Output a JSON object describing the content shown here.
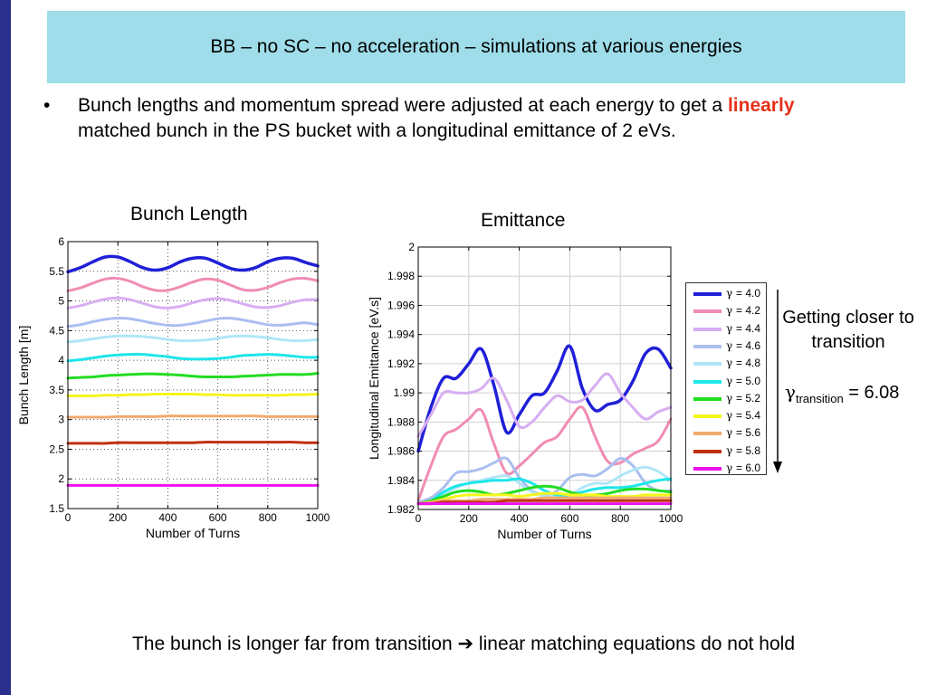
{
  "slide": {
    "title": "BB – no SC – no acceleration – simulations at various energies",
    "bullet": {
      "symbol": "•",
      "text_before": "Bunch lengths and momentum spread were adjusted at each energy to get a ",
      "highlight": "linearly",
      "text_after": " matched bunch in the PS bucket with a longitudinal emittance of 2 eVs."
    },
    "note_transition": "Getting closer to transition",
    "gamma_note": {
      "symbol": "γ",
      "subscript": "transition",
      "value": " = 6.08"
    },
    "bottom": {
      "text_before": "The bunch is longer far from transition ",
      "arrow": "➔",
      "text_after": " linear matching equations do not hold"
    },
    "colors": {
      "left_bar": "#2a2e8c",
      "title_bg": "#9edde9",
      "highlight": "#e5311a"
    }
  },
  "legend": [
    {
      "label": "= 4.0",
      "color": "#1f1fd8"
    },
    {
      "label": "= 4.2",
      "color": "#f08cb4"
    },
    {
      "label": "= 4.4",
      "color": "#d7aef2"
    },
    {
      "label": "= 4.6",
      "color": "#aabef0"
    },
    {
      "label": "= 4.8",
      "color": "#b0e6f8"
    },
    {
      "label": "= 5.0",
      "color": "#1de6ea"
    },
    {
      "label": "= 5.2",
      "color": "#22dd22"
    },
    {
      "label": "= 5.4",
      "color": "#f5f51e"
    },
    {
      "label": "= 5.6",
      "color": "#f0aa70"
    },
    {
      "label": "= 5.8",
      "color": "#c0300f"
    },
    {
      "label": "= 6.0",
      "color": "#ee10ee"
    }
  ],
  "chart_data": [
    {
      "type": "line",
      "title": "Bunch Length",
      "xlabel": "Number of Turns",
      "ylabel": "Bunch Length  [m]",
      "xlim": [
        0,
        1000
      ],
      "ylim": [
        1.5,
        6
      ],
      "xticks": [
        "0",
        "200",
        "400",
        "600",
        "800",
        "1000"
      ],
      "yticks": [
        "1.5",
        "2",
        "2.5",
        "3",
        "3.5",
        "4",
        "4.5",
        "5",
        "5.5",
        "6"
      ],
      "grid": "dotted",
      "x": [
        0,
        50,
        100,
        150,
        200,
        250,
        300,
        350,
        400,
        450,
        500,
        550,
        600,
        650,
        700,
        750,
        800,
        850,
        900,
        950,
        1000
      ],
      "series": [
        {
          "name": "γ = 4.0",
          "color": "#1f1fd8",
          "values": [
            5.49,
            5.56,
            5.66,
            5.74,
            5.74,
            5.66,
            5.56,
            5.52,
            5.56,
            5.66,
            5.72,
            5.72,
            5.64,
            5.55,
            5.52,
            5.56,
            5.66,
            5.72,
            5.72,
            5.65,
            5.59
          ]
        },
        {
          "name": "γ = 4.2",
          "color": "#f08cb4",
          "values": [
            5.17,
            5.22,
            5.3,
            5.37,
            5.38,
            5.33,
            5.24,
            5.18,
            5.18,
            5.24,
            5.32,
            5.37,
            5.35,
            5.27,
            5.19,
            5.18,
            5.23,
            5.31,
            5.37,
            5.38,
            5.34
          ]
        },
        {
          "name": "γ = 4.4",
          "color": "#d7aef2",
          "values": [
            4.88,
            4.92,
            4.98,
            5.03,
            5.05,
            5.02,
            4.96,
            4.9,
            4.88,
            4.91,
            4.97,
            5.02,
            5.04,
            5.01,
            4.95,
            4.9,
            4.89,
            4.92,
            4.98,
            5.02,
            5.02
          ]
        },
        {
          "name": "γ = 4.6",
          "color": "#aabef0",
          "values": [
            4.57,
            4.6,
            4.65,
            4.69,
            4.71,
            4.7,
            4.66,
            4.62,
            4.59,
            4.59,
            4.62,
            4.66,
            4.7,
            4.71,
            4.68,
            4.64,
            4.6,
            4.59,
            4.61,
            4.63,
            4.6
          ]
        },
        {
          "name": "γ = 4.8",
          "color": "#b0e6f8",
          "values": [
            4.31,
            4.33,
            4.36,
            4.39,
            4.41,
            4.41,
            4.4,
            4.38,
            4.35,
            4.33,
            4.33,
            4.34,
            4.37,
            4.4,
            4.41,
            4.4,
            4.38,
            4.35,
            4.33,
            4.33,
            4.35
          ]
        },
        {
          "name": "γ = 5.0",
          "color": "#1de6ea",
          "values": [
            3.99,
            4.01,
            4.04,
            4.07,
            4.09,
            4.1,
            4.1,
            4.08,
            4.06,
            4.03,
            4.02,
            4.02,
            4.03,
            4.05,
            4.08,
            4.09,
            4.1,
            4.09,
            4.07,
            4.05,
            4.05
          ]
        },
        {
          "name": "γ = 5.2",
          "color": "#22dd22",
          "values": [
            3.7,
            3.71,
            3.72,
            3.74,
            3.75,
            3.76,
            3.77,
            3.77,
            3.76,
            3.75,
            3.73,
            3.72,
            3.72,
            3.72,
            3.73,
            3.74,
            3.75,
            3.76,
            3.76,
            3.76,
            3.78
          ]
        },
        {
          "name": "γ = 5.4",
          "color": "#f5f51e",
          "values": [
            3.4,
            3.4,
            3.4,
            3.41,
            3.41,
            3.42,
            3.42,
            3.43,
            3.43,
            3.43,
            3.43,
            3.42,
            3.42,
            3.41,
            3.41,
            3.41,
            3.41,
            3.41,
            3.42,
            3.42,
            3.43
          ]
        },
        {
          "name": "γ = 5.6",
          "color": "#f0aa70",
          "values": [
            3.04,
            3.04,
            3.04,
            3.04,
            3.05,
            3.05,
            3.05,
            3.05,
            3.06,
            3.06,
            3.06,
            3.06,
            3.06,
            3.06,
            3.06,
            3.06,
            3.05,
            3.05,
            3.05,
            3.05,
            3.05
          ]
        },
        {
          "name": "γ = 5.8",
          "color": "#c0300f",
          "values": [
            2.6,
            2.6,
            2.6,
            2.6,
            2.61,
            2.61,
            2.61,
            2.61,
            2.61,
            2.61,
            2.61,
            2.62,
            2.62,
            2.62,
            2.62,
            2.62,
            2.62,
            2.62,
            2.62,
            2.61,
            2.61
          ]
        },
        {
          "name": "γ = 6.0",
          "color": "#ee10ee",
          "values": [
            1.89,
            1.89,
            1.89,
            1.89,
            1.89,
            1.89,
            1.89,
            1.89,
            1.89,
            1.89,
            1.89,
            1.89,
            1.89,
            1.89,
            1.89,
            1.89,
            1.89,
            1.89,
            1.89,
            1.89,
            1.89
          ]
        }
      ]
    },
    {
      "type": "line",
      "title": "Emittance",
      "xlabel": "Number of Turns",
      "ylabel": "Longitudinal Emittance [eV.s]",
      "xlim": [
        0,
        1000
      ],
      "ylim": [
        1.982,
        2
      ],
      "xticks": [
        "0",
        "200",
        "400",
        "600",
        "800",
        "1000"
      ],
      "yticks": [
        "1.982",
        "1.984",
        "1.986",
        "1.988",
        "1.99",
        "1.992",
        "1.994",
        "1.996",
        "1.998",
        "2"
      ],
      "grid": "solid",
      "legend_position": "outside-right",
      "x": [
        0,
        50,
        100,
        150,
        200,
        250,
        300,
        350,
        400,
        450,
        500,
        550,
        600,
        650,
        700,
        750,
        800,
        850,
        900,
        950,
        1000
      ],
      "series": [
        {
          "name": "γ = 4.0",
          "color": "#1f1fd8",
          "values": [
            1.986,
            1.989,
            1.991,
            1.991,
            1.992,
            1.993,
            1.9905,
            1.9873,
            1.9885,
            1.9898,
            1.99,
            1.9915,
            1.9932,
            1.9903,
            1.9888,
            1.9892,
            1.9895,
            1.9908,
            1.9927,
            1.993,
            1.9917
          ]
        },
        {
          "name": "γ = 4.2",
          "color": "#f08cb4",
          "values": [
            1.9826,
            1.985,
            1.987,
            1.9875,
            1.9882,
            1.9888,
            1.9865,
            1.9845,
            1.985,
            1.9858,
            1.9866,
            1.987,
            1.9882,
            1.989,
            1.987,
            1.9853,
            1.9852,
            1.9858,
            1.9862,
            1.9867,
            1.9882
          ]
        },
        {
          "name": "γ = 4.4",
          "color": "#d7aef2",
          "values": [
            1.987,
            1.9885,
            1.99,
            1.99,
            1.99,
            1.9903,
            1.991,
            1.9895,
            1.9877,
            1.988,
            1.989,
            1.9898,
            1.9894,
            1.9895,
            1.9905,
            1.9913,
            1.99,
            1.989,
            1.9882,
            1.9887,
            1.989
          ]
        },
        {
          "name": "γ = 4.6",
          "color": "#aabef0",
          "values": [
            1.9825,
            1.9828,
            1.9835,
            1.9845,
            1.9846,
            1.9848,
            1.9852,
            1.9855,
            1.9842,
            1.9833,
            1.983,
            1.9833,
            1.9842,
            1.9844,
            1.9843,
            1.9848,
            1.9855,
            1.985,
            1.9838,
            1.9833,
            1.9833
          ]
        },
        {
          "name": "γ = 4.8",
          "color": "#b0e6f8",
          "values": [
            1.9824,
            1.9826,
            1.983,
            1.9835,
            1.9838,
            1.984,
            1.9842,
            1.9843,
            1.9838,
            1.9832,
            1.9829,
            1.9829,
            1.983,
            1.9835,
            1.9838,
            1.9838,
            1.9843,
            1.9847,
            1.9849,
            1.9846,
            1.984
          ]
        },
        {
          "name": "γ = 5.0",
          "color": "#1de6ea",
          "values": [
            1.9824,
            1.9826,
            1.9832,
            1.9836,
            1.9838,
            1.9839,
            1.984,
            1.984,
            1.9841,
            1.9838,
            1.9833,
            1.983,
            1.983,
            1.9832,
            1.9834,
            1.9835,
            1.9835,
            1.9836,
            1.9838,
            1.984,
            1.9841
          ]
        },
        {
          "name": "γ = 5.2",
          "color": "#22dd22",
          "values": [
            1.9824,
            1.9826,
            1.9829,
            1.9832,
            1.9833,
            1.9832,
            1.983,
            1.9831,
            1.9833,
            1.9835,
            1.9836,
            1.9835,
            1.9832,
            1.983,
            1.983,
            1.9831,
            1.9833,
            1.9834,
            1.9834,
            1.9833,
            1.9832
          ]
        },
        {
          "name": "γ = 5.4",
          "color": "#f5f51e",
          "values": [
            1.9824,
            1.9825,
            1.9827,
            1.9829,
            1.983,
            1.983,
            1.983,
            1.983,
            1.9829,
            1.983,
            1.9831,
            1.9831,
            1.983,
            1.983,
            1.983,
            1.9829,
            1.9829,
            1.9829,
            1.983,
            1.983,
            1.983
          ]
        },
        {
          "name": "γ = 5.6",
          "color": "#f0aa70",
          "values": [
            1.9824,
            1.9825,
            1.9826,
            1.9826,
            1.9826,
            1.9827,
            1.9827,
            1.9827,
            1.9827,
            1.9827,
            1.9828,
            1.9828,
            1.9828,
            1.9828,
            1.9828,
            1.9828,
            1.9828,
            1.9828,
            1.9828,
            1.9828,
            1.9828
          ]
        },
        {
          "name": "γ = 5.8",
          "color": "#c0300f",
          "values": [
            1.9824,
            1.9824,
            1.9825,
            1.9825,
            1.9825,
            1.9825,
            1.9825,
            1.9826,
            1.9826,
            1.9826,
            1.9826,
            1.9826,
            1.9826,
            1.9826,
            1.9826,
            1.9826,
            1.9826,
            1.9826,
            1.9826,
            1.9826,
            1.9826
          ]
        },
        {
          "name": "γ = 6.0",
          "color": "#ee10ee",
          "values": [
            1.9824,
            1.9824,
            1.9824,
            1.9824,
            1.9824,
            1.9824,
            1.9824,
            1.9824,
            1.9824,
            1.9824,
            1.9824,
            1.9824,
            1.9824,
            1.9824,
            1.9824,
            1.9824,
            1.9824,
            1.9824,
            1.9824,
            1.9824,
            1.9824
          ]
        }
      ]
    }
  ]
}
